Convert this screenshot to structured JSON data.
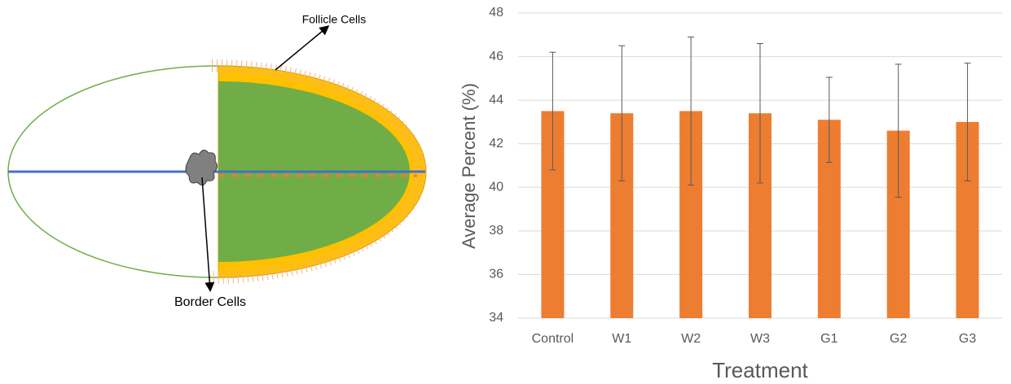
{
  "diagram": {
    "labels": [
      "Follicle Cells",
      "Border Cells"
    ]
  },
  "chart_data": {
    "type": "bar",
    "x_label": "Treatment",
    "y_label": "Average Percent (%)",
    "categories": [
      "Control",
      "W1",
      "W2",
      "W3",
      "G1",
      "G2",
      "G3"
    ],
    "values": [
      43.5,
      43.4,
      43.5,
      43.4,
      43.1,
      42.6,
      43.0
    ],
    "errors": [
      2.7,
      3.1,
      3.4,
      3.2,
      1.95,
      3.05,
      2.7
    ],
    "color": "#ed7d31",
    "ylim": [
      34,
      48
    ],
    "yticks": [
      34,
      36,
      38,
      40,
      42,
      44,
      46,
      48
    ],
    "grid": true
  }
}
